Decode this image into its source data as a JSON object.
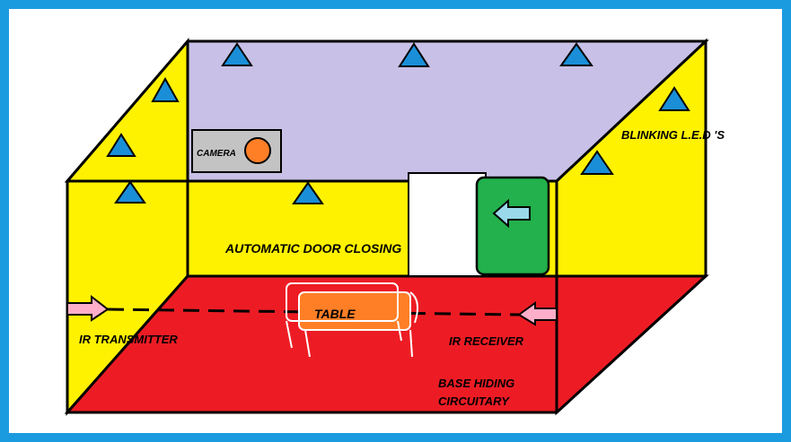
{
  "labels": {
    "camera": "CAMERA",
    "blinking_leds": "BLINKING L.E.D 'S",
    "door": "AUTOMATIC DOOR CLOSING",
    "table": "TABLE",
    "ir_transmitter": "IR TRANSMITTER",
    "ir_receiver": "IR RECEIVER",
    "base_line1": "BASE HIDING",
    "base_line2": "CIRCUITARY"
  },
  "colors": {
    "frame": "#1a9be0",
    "ceiling": "#c8c0e6",
    "walls": "#fff200",
    "floor": "#ed1c24",
    "camera_body": "#c3c3c3",
    "camera_lens": "#ff7f27",
    "led": "#1a8fd8",
    "door_panel": "#ffffff",
    "door_opening": "#22b14c",
    "door_arrow": "#99d9ea",
    "table": "#ff7f27",
    "ir_arrow": "#ffaec9",
    "outline": "#000000"
  },
  "icons": {
    "led": "triangle-led-icon",
    "camera_lens": "circle-lens-icon",
    "door_arrow": "left-arrow-icon",
    "ir_arrow": "pink-arrow-icon"
  }
}
